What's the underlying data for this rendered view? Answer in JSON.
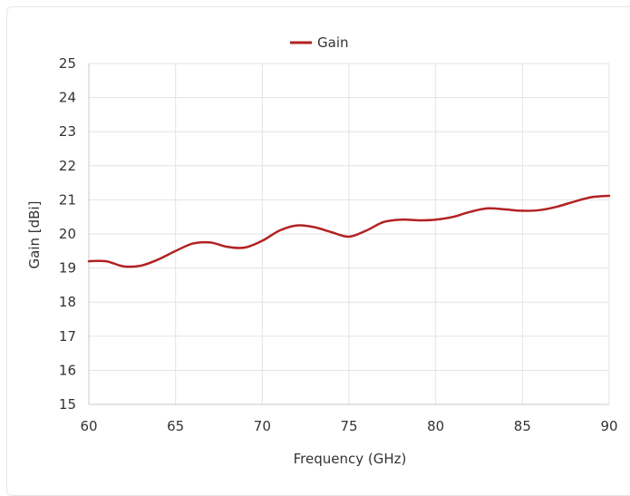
{
  "chart_data": {
    "type": "line",
    "xlabel": "Frequency (GHz)",
    "ylabel": "Gain [dBi]",
    "xlim": [
      60,
      90
    ],
    "ylim": [
      15,
      25
    ],
    "xticks": [
      60,
      65,
      70,
      75,
      80,
      85,
      90
    ],
    "yticks": [
      15,
      16,
      17,
      18,
      19,
      20,
      21,
      22,
      23,
      24,
      25
    ],
    "grid": true,
    "legend_position": "top-center",
    "series": [
      {
        "name": "Gain",
        "color": "#b22222",
        "x": [
          60,
          61,
          62,
          63,
          64,
          65,
          66,
          67,
          68,
          69,
          70,
          71,
          72,
          73,
          74,
          75,
          76,
          77,
          78,
          79,
          80,
          81,
          82,
          83,
          84,
          85,
          86,
          87,
          88,
          89,
          90
        ],
        "y": [
          19.2,
          19.2,
          19.05,
          19.07,
          19.25,
          19.5,
          19.72,
          19.75,
          19.62,
          19.6,
          19.8,
          20.1,
          20.25,
          20.2,
          20.05,
          19.92,
          20.1,
          20.35,
          20.42,
          20.4,
          20.42,
          20.5,
          20.65,
          20.75,
          20.72,
          20.68,
          20.7,
          20.8,
          20.95,
          21.08,
          21.12
        ]
      }
    ]
  }
}
